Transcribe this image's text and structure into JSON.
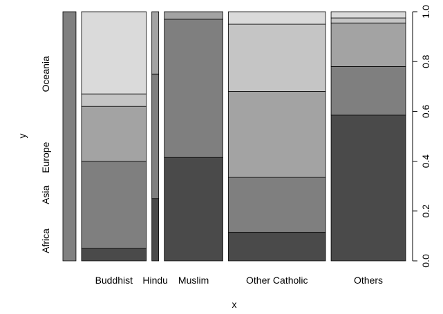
{
  "chart_data": {
    "type": "spineplot",
    "xlabel": "x",
    "ylabel": "y",
    "ylim": [
      0,
      1
    ],
    "y_ticks": [
      0.0,
      0.2,
      0.4,
      0.6,
      0.8,
      1.0
    ],
    "y_tick_labels": [
      "0.0",
      "0.2",
      "0.4",
      "0.6",
      "0.8",
      "1.0"
    ],
    "categories": [
      "Buddhist",
      "Hindu",
      "Muslim",
      "Other Catholic",
      "Others"
    ],
    "category_widths": [
      0.036,
      0.178,
      0.019,
      0.161,
      0.267,
      0.205
    ],
    "columns": [
      {
        "label": "",
        "cuts": [
          1.0
        ]
      },
      {
        "label": "Buddhist",
        "cuts": [
          0.05,
          0.4,
          0.62,
          0.67,
          1.0
        ]
      },
      {
        "label": "Hindu",
        "cuts": [
          0.25,
          0.75,
          1.0
        ]
      },
      {
        "label": "Muslim",
        "cuts": [
          0.415,
          0.97,
          1.0
        ]
      },
      {
        "label": "Other Catholic",
        "cuts": [
          0.115,
          0.335,
          0.68,
          0.95,
          1.0
        ]
      },
      {
        "label": "Others",
        "cuts": [
          0.585,
          0.78,
          0.955,
          0.975,
          1.0
        ]
      }
    ],
    "level_labels": [
      "Africa",
      "Asia",
      "Europe",
      "Oceania"
    ],
    "level_label_positions": [
      0.08,
      0.265,
      0.415,
      0.75
    ],
    "colors": [
      "#4a4a4a",
      "#7f7f7f",
      "#a3a3a3",
      "#c5c5c5",
      "#dadada",
      "#ebebeb"
    ],
    "single_color": "#808080"
  }
}
